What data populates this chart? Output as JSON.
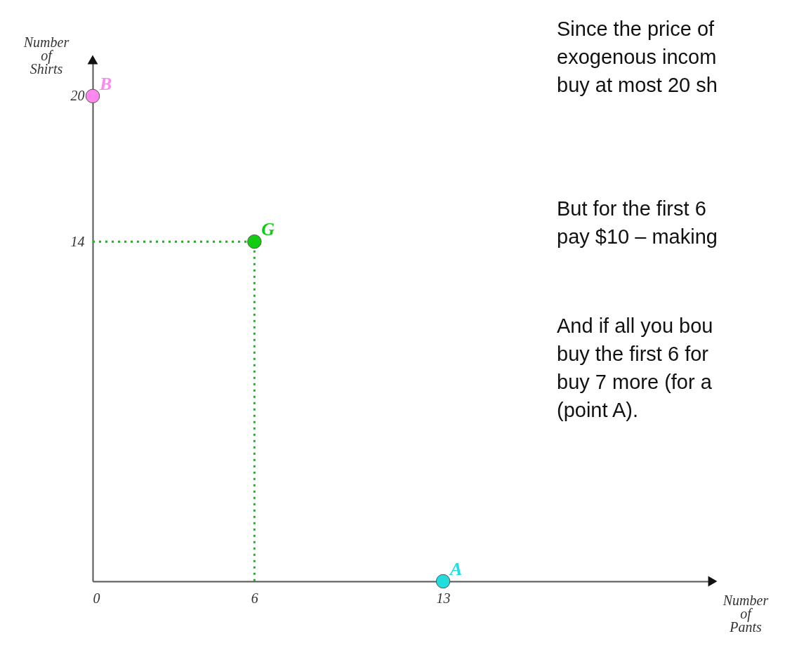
{
  "chart_data": {
    "type": "scatter",
    "xlabel": "Number\nof\nPants",
    "ylabel": "Number\nof\nShirts",
    "xlim": [
      0,
      23
    ],
    "ylim": [
      0,
      21.5
    ],
    "xticks": [
      0,
      6,
      13
    ],
    "yticks": [
      14,
      20
    ],
    "grid": false,
    "marker": "circle",
    "series": [
      {
        "type": "line",
        "line_style": "dotted",
        "marker": "none",
        "color": "#11bb11",
        "x": [
          0,
          6,
          6
        ],
        "values": [
          14,
          14,
          0
        ]
      },
      {
        "name": "B",
        "color": "#ff88ee",
        "x": [
          0
        ],
        "values": [
          20
        ]
      },
      {
        "name": "G",
        "color": "#11cc11",
        "x": [
          6
        ],
        "values": [
          14
        ]
      },
      {
        "name": "A",
        "color": "#22dddd",
        "x": [
          13
        ],
        "values": [
          0
        ]
      }
    ],
    "annotations": [
      "Since the price of\nexogenous incom\nbuy at most 20 sh",
      "But for the first 6\npay $10 – making",
      "And if all you bou\nbuy the first 6 for\nbuy 7 more (for a\n(point A)."
    ]
  }
}
